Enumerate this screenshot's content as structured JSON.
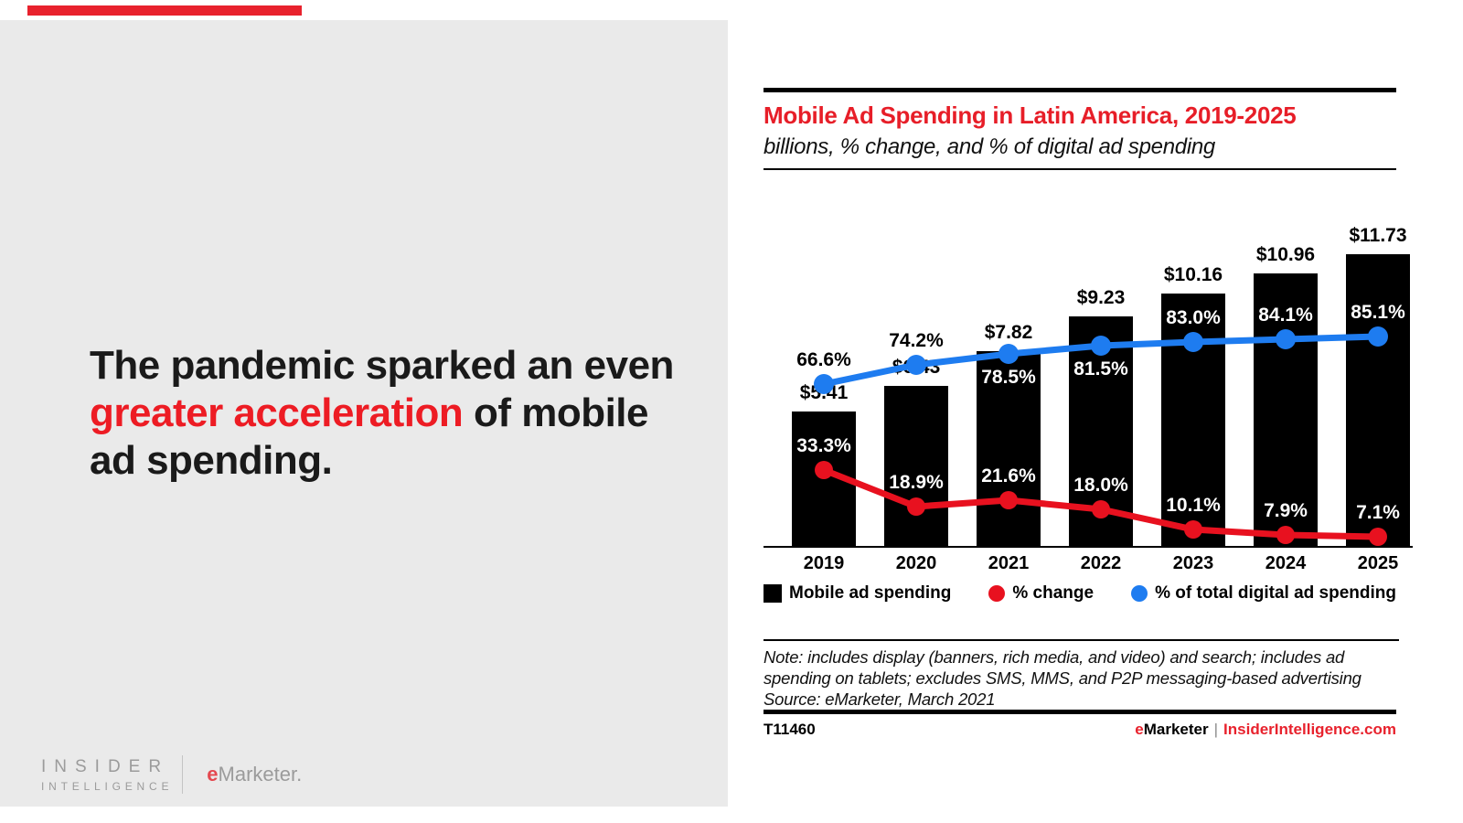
{
  "slide": {
    "headline": {
      "seg1": "The pandemic sparked an even ",
      "highlight": "greater acceleration",
      "seg3": " of mobile ad spending.",
      "highlight_color": "#ed1c24"
    },
    "logos": {
      "insider_line1": "INSIDER",
      "insider_line2": "INTELLIGENCE",
      "emarketer_e": "e",
      "emarketer_rest": "Marketer."
    },
    "panel_color": "#eaeaea",
    "accent_color": "#e8222d"
  },
  "chart_data": {
    "type": "bar+line",
    "title": "Mobile Ad Spending in Latin America, 2019-2025",
    "subtitle": "billions, % change, and % of digital ad spending",
    "categories": [
      "2019",
      "2020",
      "2021",
      "2022",
      "2023",
      "2024",
      "2025"
    ],
    "series": [
      {
        "name": "Mobile ad spending",
        "type": "bar",
        "color": "#000000",
        "unit": "billions of dollars",
        "values": [
          5.41,
          6.43,
          7.82,
          9.23,
          10.16,
          10.96,
          11.73
        ],
        "labels": [
          "$5.41",
          "$6.43",
          "$7.82",
          "$9.23",
          "$10.16",
          "$10.96",
          "$11.73"
        ]
      },
      {
        "name": "% change",
        "type": "line",
        "color": "#e8111f",
        "values": [
          33.3,
          18.9,
          21.6,
          18.0,
          10.1,
          7.9,
          7.1
        ],
        "labels": [
          "33.3%",
          "18.9%",
          "21.6%",
          "18.0%",
          "10.1%",
          "7.9%",
          "7.1%"
        ],
        "label_side": [
          "above",
          "above",
          "above",
          "above",
          "above",
          "above",
          "above"
        ],
        "label_color": [
          "#ffffff",
          "#ffffff",
          "#ffffff",
          "#ffffff",
          "#ffffff",
          "#ffffff",
          "#ffffff"
        ]
      },
      {
        "name": "% of total digital ad spending",
        "type": "line",
        "color": "#1e7cf0",
        "values": [
          66.6,
          74.2,
          78.5,
          81.5,
          83.0,
          84.1,
          85.1
        ],
        "labels": [
          "66.6%",
          "74.2%",
          "78.5%",
          "81.5%",
          "83.0%",
          "84.1%",
          "85.1%"
        ],
        "label_side": [
          "above",
          "above",
          "below",
          "below",
          "above",
          "above",
          "above"
        ],
        "label_color": [
          "#000000",
          "#000000",
          "#ffffff",
          "#ffffff",
          "#ffffff",
          "#ffffff",
          "#ffffff"
        ]
      }
    ],
    "legend_position": "bottom",
    "grid": false,
    "note": "Note: includes display (banners, rich media, and video) and search; includes ad spending on tablets; excludes SMS, MMS, and P2P messaging-based advertising",
    "source": "Source: eMarketer, March 2021",
    "footer": {
      "id": "T11460",
      "brand_e": "e",
      "brand_rest": "Marketer",
      "separator": "|",
      "site": "InsiderIntelligence.com"
    }
  }
}
